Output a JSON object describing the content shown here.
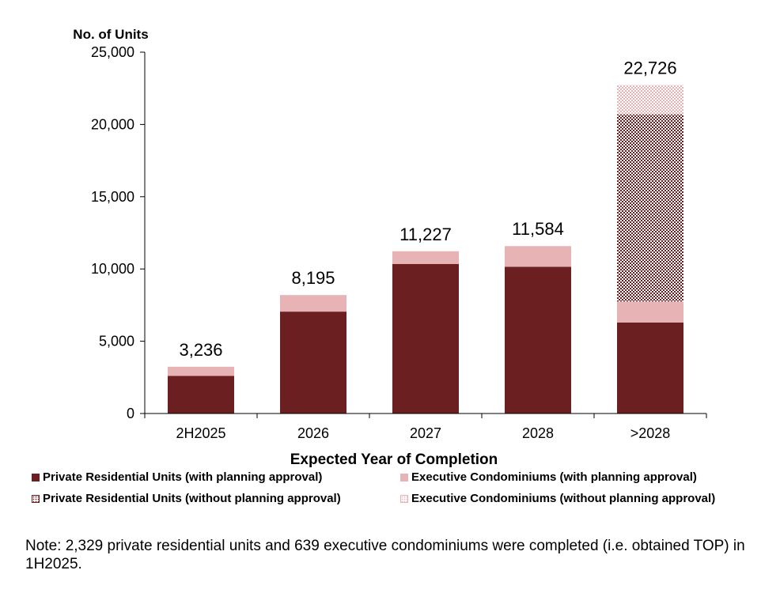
{
  "chart_data": {
    "type": "stacked-bar",
    "ylabel": "No. of Units",
    "xlabel": "Expected Year of Completion",
    "ylim": [
      0,
      25000
    ],
    "yticks": [
      0,
      5000,
      10000,
      15000,
      20000,
      25000
    ],
    "ytick_labels": [
      "0",
      "5,000",
      "10,000",
      "15,000",
      "20,000",
      "25,000"
    ],
    "categories": [
      "2H2025",
      "2026",
      "2027",
      "2028",
      ">2028"
    ],
    "series": [
      {
        "name": "Private Residential Units (with planning approval)",
        "color": "#6b1f21",
        "pattern": "solid",
        "values": [
          2600,
          7050,
          10350,
          10150,
          6300
        ]
      },
      {
        "name": "Executive Condominiums (with planning approval)",
        "color": "#e7b3b5",
        "pattern": "solid",
        "values": [
          636,
          1145,
          877,
          1434,
          1450
        ]
      },
      {
        "name": "Private Residential Units (without planning approval)",
        "color": "#6b1f21",
        "pattern": "dotted",
        "values": [
          0,
          0,
          0,
          0,
          12950
        ]
      },
      {
        "name": "Executive Condominiums (without planning approval)",
        "color": "#e7b3b5",
        "pattern": "dotted",
        "values": [
          0,
          0,
          0,
          0,
          2026
        ]
      }
    ],
    "totals": [
      3236,
      8195,
      11227,
      11584,
      22726
    ],
    "total_labels": [
      "3,236",
      "8,195",
      "11,227",
      "11,584",
      "22,726"
    ]
  },
  "note": "Note: 2,329 private residential units and 639 executive condominiums were completed (i.e. obtained TOP) in 1H2025."
}
